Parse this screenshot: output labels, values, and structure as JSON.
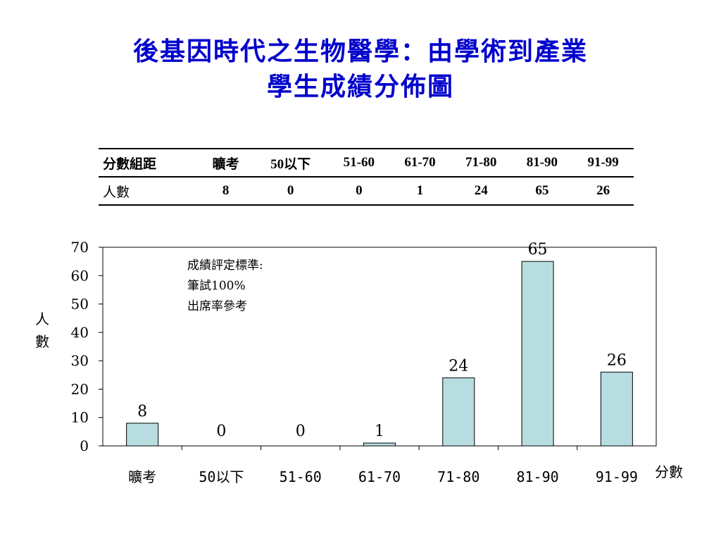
{
  "title_line1": "後基因時代之生物醫學：由學術到產業",
  "title_line2": "學生成績分佈圖",
  "table": {
    "header_label": "分數組距",
    "columns": [
      "曠考",
      "50以下",
      "51-60",
      "61-70",
      "71-80",
      "81-90",
      "91-99"
    ],
    "row_label": "人數",
    "values": [
      "8",
      "0",
      "0",
      "1",
      "24",
      "65",
      "26"
    ]
  },
  "note": {
    "line1": "成績評定標準:",
    "line2": "筆試100%",
    "line3": "出席率參考"
  },
  "colors": {
    "title": "#0000cc",
    "bar_fill": "#b8dde1",
    "bar_stroke": "#000000"
  },
  "chart_data": {
    "type": "bar",
    "categories": [
      "曠考",
      "50以下",
      "51-60",
      "61-70",
      "71-80",
      "81-90",
      "91-99"
    ],
    "values": [
      8,
      0,
      0,
      1,
      24,
      65,
      26
    ],
    "data_labels": [
      "8",
      "0",
      "0",
      "1",
      "24",
      "65",
      "26"
    ],
    "xlabel": "分數",
    "ylabel": "人數",
    "ylim": [
      0,
      70
    ],
    "yticks": [
      0,
      10,
      20,
      30,
      40,
      50,
      60,
      70
    ],
    "grid": false,
    "legend": "none"
  }
}
